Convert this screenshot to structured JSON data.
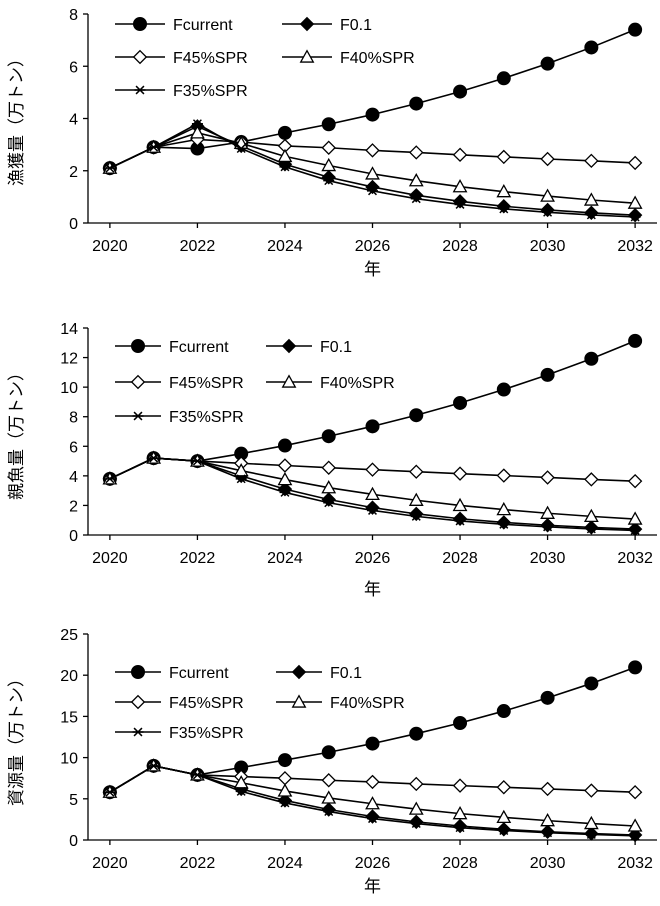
{
  "chart_data": [
    {
      "type": "line",
      "ylabel": "漁獲量（万トン）",
      "xlabel": "年",
      "ylim": [
        0,
        8
      ],
      "yticks": [
        0,
        2,
        4,
        6,
        8
      ],
      "xlim": [
        2019.5,
        2032.5
      ],
      "xticks": [
        2020,
        2022,
        2024,
        2026,
        2028,
        2030,
        2032
      ],
      "x": [
        2020,
        2021,
        2022,
        2023,
        2024,
        2025,
        2026,
        2027,
        2028,
        2029,
        2030,
        2031,
        2032
      ],
      "legend_position": "top-left",
      "series": [
        {
          "name": "Fcurrent",
          "marker": "circle",
          "values": [
            2.1,
            2.9,
            2.85,
            3.1,
            3.45,
            3.78,
            4.15,
            4.57,
            5.03,
            5.54,
            6.1,
            6.72,
            7.4
          ]
        },
        {
          "name": "F0.1",
          "marker": "diamond",
          "values": [
            2.1,
            2.9,
            3.7,
            2.95,
            2.25,
            1.75,
            1.38,
            1.06,
            0.83,
            0.64,
            0.5,
            0.39,
            0.3
          ]
        },
        {
          "name": "F45%SPR",
          "marker": "diamond-open",
          "values": [
            2.1,
            2.9,
            3.2,
            3.1,
            2.95,
            2.88,
            2.78,
            2.7,
            2.61,
            2.53,
            2.45,
            2.38,
            2.3
          ]
        },
        {
          "name": "F40%SPR",
          "marker": "triangle-open",
          "values": [
            2.1,
            2.9,
            3.45,
            3.05,
            2.55,
            2.2,
            1.88,
            1.62,
            1.39,
            1.2,
            1.03,
            0.88,
            0.76
          ]
        },
        {
          "name": "F35%SPR",
          "marker": "star",
          "values": [
            2.1,
            2.9,
            3.8,
            2.85,
            2.15,
            1.62,
            1.23,
            0.93,
            0.71,
            0.54,
            0.41,
            0.31,
            0.23
          ]
        }
      ]
    },
    {
      "type": "line",
      "ylabel": "親魚量（万トン）",
      "xlabel": "年",
      "ylim": [
        0,
        14
      ],
      "yticks": [
        0,
        2,
        4,
        6,
        8,
        10,
        12,
        14
      ],
      "xlim": [
        2019.5,
        2032.5
      ],
      "xticks": [
        2020,
        2022,
        2024,
        2026,
        2028,
        2030,
        2032
      ],
      "x": [
        2020,
        2021,
        2022,
        2023,
        2024,
        2025,
        2026,
        2027,
        2028,
        2029,
        2030,
        2031,
        2032
      ],
      "legend_position": "top-left",
      "series": [
        {
          "name": "Fcurrent",
          "marker": "circle",
          "values": [
            3.8,
            5.2,
            5.0,
            5.5,
            6.05,
            6.68,
            7.35,
            8.1,
            8.93,
            9.84,
            10.83,
            11.92,
            13.13
          ]
        },
        {
          "name": "F0.1",
          "marker": "diamond",
          "values": [
            3.8,
            5.2,
            5.0,
            4.0,
            3.1,
            2.4,
            1.85,
            1.43,
            1.1,
            0.85,
            0.66,
            0.51,
            0.4
          ]
        },
        {
          "name": "F45%SPR",
          "marker": "diamond-open",
          "values": [
            3.8,
            5.2,
            5.0,
            4.85,
            4.7,
            4.55,
            4.42,
            4.28,
            4.15,
            4.02,
            3.89,
            3.76,
            3.64
          ]
        },
        {
          "name": "F40%SPR",
          "marker": "triangle-open",
          "values": [
            3.8,
            5.2,
            5.0,
            4.35,
            3.75,
            3.2,
            2.75,
            2.35,
            2.0,
            1.72,
            1.47,
            1.26,
            1.08
          ]
        },
        {
          "name": "F35%SPR",
          "marker": "star",
          "values": [
            3.8,
            5.2,
            5.0,
            3.8,
            2.88,
            2.18,
            1.66,
            1.26,
            0.95,
            0.72,
            0.55,
            0.41,
            0.31
          ]
        }
      ]
    },
    {
      "type": "line",
      "ylabel": "資源量（万トン）",
      "xlabel": "年",
      "ylim": [
        0,
        25
      ],
      "yticks": [
        0,
        5,
        10,
        15,
        20,
        25
      ],
      "xlim": [
        2019.5,
        2032.5
      ],
      "xticks": [
        2020,
        2022,
        2024,
        2026,
        2028,
        2030,
        2032
      ],
      "x": [
        2020,
        2021,
        2022,
        2023,
        2024,
        2025,
        2026,
        2027,
        2028,
        2029,
        2030,
        2031,
        2032
      ],
      "legend_position": "top-left",
      "series": [
        {
          "name": "Fcurrent",
          "marker": "circle",
          "values": [
            5.8,
            9.0,
            7.9,
            8.8,
            9.7,
            10.65,
            11.7,
            12.9,
            14.2,
            15.65,
            17.25,
            19.0,
            20.95
          ]
        },
        {
          "name": "F0.1",
          "marker": "diamond",
          "values": [
            5.8,
            9.0,
            7.9,
            6.2,
            4.8,
            3.7,
            2.85,
            2.2,
            1.7,
            1.3,
            1.0,
            0.78,
            0.6
          ]
        },
        {
          "name": "F45%SPR",
          "marker": "diamond-open",
          "values": [
            5.8,
            9.0,
            7.9,
            7.7,
            7.5,
            7.25,
            7.05,
            6.8,
            6.6,
            6.4,
            6.2,
            6.0,
            5.8
          ]
        },
        {
          "name": "F40%SPR",
          "marker": "triangle-open",
          "values": [
            5.8,
            9.0,
            7.9,
            6.95,
            5.95,
            5.1,
            4.4,
            3.75,
            3.2,
            2.75,
            2.35,
            2.0,
            1.7
          ]
        },
        {
          "name": "F35%SPR",
          "marker": "star",
          "values": [
            5.8,
            9.0,
            7.9,
            5.9,
            4.5,
            3.45,
            2.6,
            2.0,
            1.5,
            1.15,
            0.88,
            0.67,
            0.5
          ]
        }
      ]
    }
  ]
}
